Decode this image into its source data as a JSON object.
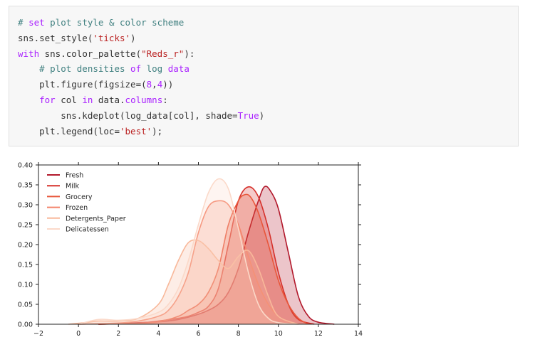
{
  "code": {
    "lines": [
      [
        {
          "t": "# ",
          "c": "cm"
        },
        {
          "t": "set",
          "c": "kw2"
        },
        {
          "t": " plot style & color scheme",
          "c": "cm"
        }
      ],
      [
        {
          "t": "sns.set_style(",
          "c": "plain"
        },
        {
          "t": "'ticks'",
          "c": "str"
        },
        {
          "t": ")",
          "c": "plain"
        }
      ],
      [
        {
          "t": "with",
          "c": "kw2"
        },
        {
          "t": " sns.color_palette(",
          "c": "plain"
        },
        {
          "t": "\"Reds_r\"",
          "c": "str"
        },
        {
          "t": "):",
          "c": "plain"
        }
      ],
      [
        {
          "t": "    # plot densities ",
          "c": "cm"
        },
        {
          "t": "of",
          "c": "kw2"
        },
        {
          "t": " log ",
          "c": "cm"
        },
        {
          "t": "data",
          "c": "kw2"
        }
      ],
      [
        {
          "t": "    plt.figure(figsize=(",
          "c": "plain"
        },
        {
          "t": "8",
          "c": "kw2"
        },
        {
          "t": ",",
          "c": "plain"
        },
        {
          "t": "4",
          "c": "kw2"
        },
        {
          "t": "))",
          "c": "plain"
        }
      ],
      [
        {
          "t": "    ",
          "c": "plain"
        },
        {
          "t": "for",
          "c": "kw2"
        },
        {
          "t": " col ",
          "c": "plain"
        },
        {
          "t": "in",
          "c": "kw2"
        },
        {
          "t": " data.",
          "c": "plain"
        },
        {
          "t": "columns",
          "c": "kw2"
        },
        {
          "t": ":",
          "c": "plain"
        }
      ],
      [
        {
          "t": "        sns.kdeplot(log_data[col], shade=",
          "c": "plain"
        },
        {
          "t": "True",
          "c": "kw2"
        },
        {
          "t": ")",
          "c": "plain"
        }
      ],
      [
        {
          "t": "    plt.legend(loc=",
          "c": "plain"
        },
        {
          "t": "'best'",
          "c": "str"
        },
        {
          "t": ");",
          "c": "plain"
        }
      ]
    ]
  },
  "chart_data": {
    "type": "area",
    "title": "",
    "xlabel": "",
    "ylabel": "",
    "xlim": [
      -2,
      14
    ],
    "ylim": [
      0,
      0.4
    ],
    "xticks": [
      "−2",
      "0",
      "2",
      "4",
      "6",
      "8",
      "10",
      "12",
      "14"
    ],
    "yticks": [
      "0.00",
      "0.05",
      "0.10",
      "0.15",
      "0.20",
      "0.25",
      "0.30",
      "0.35",
      "0.40"
    ],
    "legend_position": "top-left",
    "grid": false,
    "series": [
      {
        "name": "Fresh",
        "color": "#b2182b",
        "x": [
          1,
          2,
          3,
          4,
          5,
          6,
          6.5,
          7,
          7.5,
          8,
          8.5,
          9,
          9.3,
          9.6,
          10,
          10.5,
          11,
          11.5,
          12,
          12.8
        ],
        "y": [
          0,
          0.002,
          0.004,
          0.006,
          0.012,
          0.025,
          0.035,
          0.05,
          0.08,
          0.14,
          0.23,
          0.31,
          0.345,
          0.335,
          0.29,
          0.18,
          0.07,
          0.02,
          0.005,
          0
        ]
      },
      {
        "name": "Milk",
        "color": "#d6302a",
        "x": [
          1,
          3,
          4,
          5,
          5.5,
          6,
          6.5,
          7,
          7.5,
          8,
          8.5,
          9,
          9.5,
          10,
          10.5,
          11,
          11.8
        ],
        "y": [
          0,
          0.003,
          0.008,
          0.015,
          0.02,
          0.03,
          0.045,
          0.09,
          0.2,
          0.31,
          0.345,
          0.32,
          0.24,
          0.13,
          0.05,
          0.012,
          0
        ]
      },
      {
        "name": "Grocery",
        "color": "#e8573b",
        "x": [
          1,
          3,
          4,
          5,
          5.5,
          6,
          6.5,
          7,
          7.5,
          8,
          8.3,
          8.6,
          9,
          9.5,
          10,
          10.5,
          11,
          11.5
        ],
        "y": [
          0,
          0.002,
          0.006,
          0.02,
          0.035,
          0.05,
          0.08,
          0.14,
          0.25,
          0.31,
          0.325,
          0.32,
          0.28,
          0.2,
          0.11,
          0.05,
          0.015,
          0
        ]
      },
      {
        "name": "Frozen",
        "color": "#f4846a",
        "x": [
          0,
          2,
          3,
          4,
          4.5,
          5,
          5.5,
          6,
          6.5,
          7,
          7.5,
          8,
          8.5,
          9,
          9.5,
          10,
          10.5,
          11
        ],
        "y": [
          0,
          0.003,
          0.008,
          0.02,
          0.035,
          0.07,
          0.13,
          0.23,
          0.295,
          0.31,
          0.3,
          0.25,
          0.17,
          0.1,
          0.05,
          0.02,
          0.007,
          0
        ]
      },
      {
        "name": "Detergents_Paper",
        "color": "#f8b89a",
        "x": [
          -0.5,
          0.5,
          1,
          2,
          3,
          4,
          4.5,
          5,
          5.5,
          6,
          6.5,
          7,
          7.5,
          8,
          8.5,
          9,
          9.5,
          10,
          11
        ],
        "y": [
          0,
          0.005,
          0.008,
          0.008,
          0.015,
          0.05,
          0.1,
          0.16,
          0.205,
          0.21,
          0.19,
          0.16,
          0.14,
          0.17,
          0.185,
          0.14,
          0.07,
          0.02,
          0
        ]
      },
      {
        "name": "Delicatessen",
        "color": "#fbd9c9",
        "x": [
          0,
          1,
          2,
          3,
          4,
          4.5,
          5,
          5.5,
          6,
          6.5,
          7,
          7.5,
          8,
          8.5,
          9,
          9.5,
          10,
          11
        ],
        "y": [
          0,
          0.012,
          0.01,
          0.015,
          0.03,
          0.05,
          0.09,
          0.16,
          0.25,
          0.33,
          0.365,
          0.34,
          0.24,
          0.13,
          0.05,
          0.015,
          0.004,
          0
        ]
      }
    ]
  }
}
